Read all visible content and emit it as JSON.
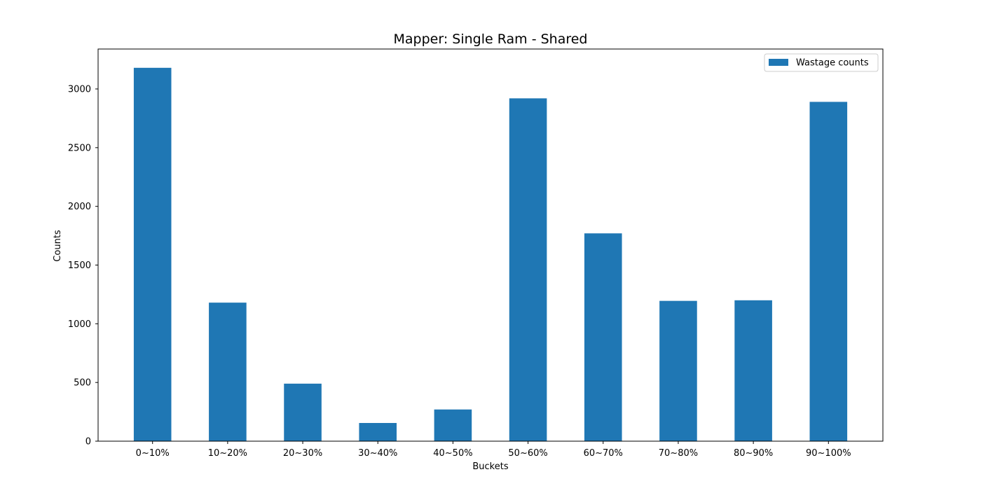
{
  "chart_data": {
    "type": "bar",
    "title": "Mapper: Single Ram - Shared",
    "xlabel": "Buckets",
    "ylabel": "Counts",
    "categories": [
      "0~10%",
      "10~20%",
      "20~30%",
      "30~40%",
      "40~50%",
      "50~60%",
      "60~70%",
      "70~80%",
      "80~90%",
      "90~100%"
    ],
    "series": [
      {
        "name": "Wastage counts",
        "color": "#1f77b4",
        "values": [
          3180,
          1180,
          490,
          155,
          270,
          2920,
          1770,
          1195,
          1200,
          2890
        ]
      }
    ],
    "ylim": [
      0,
      3340
    ],
    "yticks": [
      0,
      500,
      1000,
      1500,
      2000,
      2500,
      3000
    ],
    "yticklabels": [
      "0",
      "500",
      "1000",
      "1500",
      "2000",
      "2500",
      "3000"
    ],
    "grid": false,
    "legend_position": "top-right"
  }
}
